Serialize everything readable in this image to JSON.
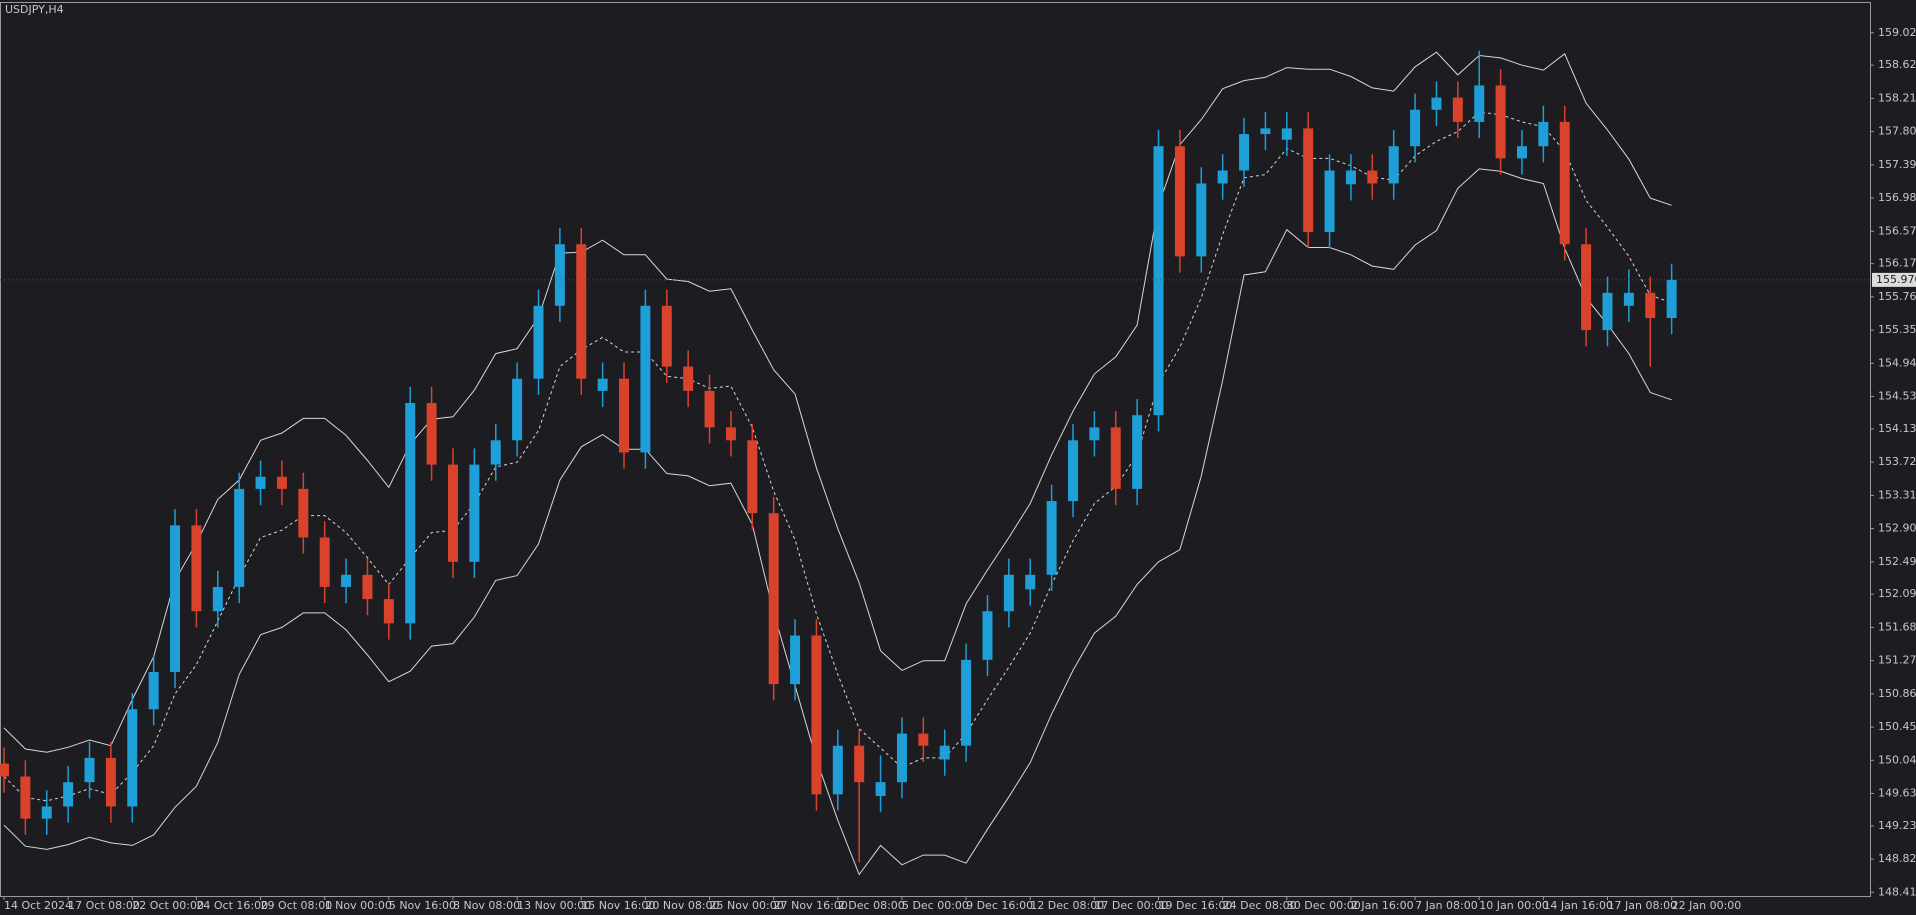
{
  "chart_data": {
    "type": "candlestick",
    "title": "USDJPY,H4",
    "background": "#1c1c21",
    "up_color": "#1e9fd8",
    "down_color": "#d9432b",
    "band_color": "#d8d8d8",
    "grid": false,
    "categories": [
      "14 Oct 2024",
      null,
      null,
      "17 Oct 08:00",
      null,
      null,
      "22 Oct 00:00",
      null,
      null,
      "24 Oct 16:00",
      null,
      null,
      "29 Oct 08:00",
      null,
      null,
      "1 Nov 00:00",
      null,
      null,
      "5 Nov 16:00",
      null,
      null,
      "8 Nov 08:00",
      null,
      null,
      "13 Nov 00:00",
      null,
      null,
      "15 Nov 16:00",
      null,
      null,
      "20 Nov 08:00",
      null,
      null,
      "25 Nov 00:00",
      null,
      null,
      "27 Nov 16:00",
      null,
      null,
      "2 Dec 08:00",
      null,
      null,
      "5 Dec 00:00",
      null,
      null,
      "9 Dec 16:00",
      null,
      null,
      "12 Dec 08:00",
      null,
      null,
      "17 Dec 00:00",
      null,
      null,
      "19 Dec 16:00",
      null,
      null,
      "24 Dec 08:00",
      null,
      null,
      "30 Dec 00:00",
      null,
      null,
      "2 Jan 16:00",
      null,
      null,
      "7 Jan 08:00",
      null,
      null,
      "10 Jan 00:00",
      null,
      null,
      "14 Jan 16:00",
      null,
      null,
      "17 Jan 08:00",
      null,
      null,
      "22 Jan 00:00"
    ],
    "open": [
      150.0,
      149.84,
      149.32,
      149.47,
      149.77,
      150.07,
      149.47,
      150.67,
      151.13,
      152.94,
      151.88,
      152.18,
      153.39,
      153.54,
      153.39,
      152.79,
      152.18,
      152.33,
      152.03,
      151.73,
      154.45,
      153.69,
      152.49,
      153.69,
      153.99,
      154.75,
      155.65,
      156.41,
      154.6,
      154.75,
      153.84,
      155.65,
      154.9,
      154.6,
      154.15,
      153.99,
      153.09,
      150.98,
      151.58,
      149.62,
      150.22,
      149.6,
      149.77,
      150.37,
      150.05,
      150.22,
      151.28,
      151.88,
      152.15,
      152.33,
      153.24,
      153.99,
      154.15,
      153.39,
      154.3,
      157.62,
      156.26,
      157.16,
      157.32,
      157.77,
      157.7,
      157.84,
      156.56,
      157.15,
      157.32,
      157.16,
      157.62,
      158.07,
      158.22,
      157.92,
      158.37,
      157.47,
      157.62,
      157.92,
      156.41,
      155.35,
      155.65,
      155.81,
      155.5
    ],
    "high": [
      150.2,
      150.04,
      149.67,
      149.97,
      150.27,
      150.27,
      150.87,
      151.33,
      153.14,
      153.14,
      152.38,
      153.59,
      153.74,
      153.74,
      153.59,
      152.99,
      152.53,
      152.53,
      152.23,
      154.65,
      154.65,
      153.89,
      153.89,
      154.19,
      154.95,
      155.85,
      156.61,
      156.61,
      154.95,
      154.95,
      155.85,
      155.85,
      155.1,
      154.8,
      154.35,
      154.19,
      153.29,
      151.78,
      151.78,
      150.42,
      150.42,
      150.1,
      150.57,
      150.57,
      150.42,
      151.48,
      152.08,
      152.53,
      152.53,
      153.44,
      154.19,
      154.35,
      154.35,
      154.5,
      157.82,
      157.82,
      157.36,
      157.52,
      157.97,
      158.04,
      158.04,
      158.04,
      157.52,
      157.52,
      157.52,
      157.82,
      158.27,
      158.42,
      158.42,
      158.8,
      158.57,
      157.82,
      158.12,
      158.12,
      156.61,
      156.01,
      156.1,
      156.01,
      156.17
    ],
    "low": [
      149.64,
      149.12,
      149.12,
      149.27,
      149.57,
      149.27,
      149.27,
      150.47,
      150.93,
      151.68,
      151.68,
      151.98,
      153.19,
      153.19,
      152.59,
      151.98,
      151.98,
      151.83,
      151.53,
      151.53,
      153.49,
      152.29,
      152.29,
      153.49,
      153.79,
      154.55,
      155.45,
      154.55,
      154.4,
      153.64,
      153.64,
      154.7,
      154.4,
      153.95,
      153.79,
      152.89,
      150.78,
      150.78,
      149.42,
      149.42,
      148.78,
      149.4,
      149.57,
      150.02,
      149.85,
      150.02,
      151.08,
      151.68,
      151.95,
      152.13,
      153.04,
      153.79,
      153.19,
      153.19,
      154.1,
      156.06,
      156.06,
      156.96,
      157.12,
      157.57,
      157.5,
      156.36,
      156.36,
      156.95,
      156.96,
      156.96,
      157.42,
      157.87,
      157.72,
      157.72,
      157.27,
      157.27,
      157.42,
      156.21,
      155.15,
      155.15,
      155.45,
      154.9,
      155.3
    ],
    "close": [
      149.84,
      149.32,
      149.47,
      149.77,
      150.07,
      149.47,
      150.67,
      151.13,
      152.94,
      151.88,
      152.18,
      153.39,
      153.54,
      153.39,
      152.79,
      152.18,
      152.33,
      152.03,
      151.73,
      154.45,
      153.69,
      152.49,
      153.69,
      153.99,
      154.75,
      155.65,
      156.41,
      154.75,
      154.75,
      153.84,
      155.65,
      154.9,
      154.6,
      154.15,
      153.99,
      153.09,
      150.98,
      151.58,
      149.62,
      150.22,
      149.77,
      149.77,
      150.37,
      150.22,
      150.22,
      151.28,
      151.88,
      152.33,
      152.33,
      153.24,
      153.99,
      154.15,
      153.39,
      154.3,
      157.62,
      156.26,
      157.16,
      157.32,
      157.77,
      157.84,
      157.84,
      156.56,
      157.32,
      157.32,
      157.16,
      157.62,
      158.07,
      158.22,
      157.92,
      158.37,
      157.47,
      157.62,
      157.92,
      156.41,
      155.35,
      155.81,
      155.81,
      155.5,
      155.97
    ],
    "bands": {
      "upper": [
        150.44,
        150.18,
        150.14,
        150.2,
        150.29,
        150.22,
        150.79,
        151.32,
        152.26,
        152.72,
        153.26,
        153.5,
        153.99,
        154.08,
        154.26,
        154.26,
        154.05,
        153.74,
        153.41,
        153.94,
        154.25,
        154.28,
        154.61,
        155.06,
        155.12,
        155.51,
        156.3,
        156.31,
        156.46,
        156.28,
        156.28,
        155.98,
        155.95,
        155.83,
        155.86,
        155.35,
        154.86,
        154.56,
        153.65,
        152.9,
        152.23,
        151.39,
        151.15,
        151.27,
        151.27,
        151.97,
        152.39,
        152.79,
        153.21,
        153.81,
        154.35,
        154.81,
        155.02,
        155.41,
        156.89,
        157.64,
        157.95,
        158.33,
        158.43,
        158.47,
        158.59,
        158.57,
        158.57,
        158.48,
        158.34,
        158.3,
        158.6,
        158.78,
        158.5,
        158.74,
        158.71,
        158.62,
        158.56,
        158.76,
        158.15,
        157.82,
        157.46,
        156.98,
        156.89
      ],
      "middle": [
        149.84,
        149.58,
        149.54,
        149.6,
        149.69,
        149.62,
        149.89,
        150.22,
        150.86,
        151.22,
        151.76,
        152.3,
        152.79,
        152.88,
        153.06,
        153.06,
        152.85,
        152.54,
        152.21,
        152.54,
        152.85,
        152.88,
        153.21,
        153.66,
        153.72,
        154.11,
        154.9,
        155.11,
        155.26,
        155.08,
        155.08,
        154.78,
        154.75,
        154.63,
        154.66,
        154.15,
        153.36,
        152.76,
        151.85,
        151.1,
        150.43,
        150.19,
        149.95,
        150.07,
        150.07,
        150.37,
        150.79,
        151.19,
        151.61,
        152.21,
        152.75,
        153.21,
        153.42,
        153.81,
        154.69,
        155.14,
        155.75,
        156.53,
        157.23,
        157.27,
        157.59,
        157.47,
        157.47,
        157.38,
        157.24,
        157.2,
        157.5,
        157.68,
        157.8,
        158.04,
        158.01,
        157.92,
        157.86,
        157.56,
        156.95,
        156.62,
        156.26,
        155.78,
        155.69
      ],
      "lower": [
        149.24,
        148.98,
        148.94,
        149.0,
        149.09,
        149.02,
        148.99,
        149.12,
        149.46,
        149.72,
        150.26,
        151.1,
        151.59,
        151.68,
        151.86,
        151.86,
        151.65,
        151.34,
        151.01,
        151.14,
        151.45,
        151.48,
        151.81,
        152.26,
        152.32,
        152.71,
        153.5,
        153.91,
        154.06,
        153.88,
        153.88,
        153.58,
        153.55,
        153.43,
        153.46,
        152.95,
        151.86,
        150.96,
        150.05,
        149.3,
        148.63,
        148.99,
        148.75,
        148.87,
        148.87,
        148.77,
        149.19,
        149.59,
        150.01,
        150.61,
        151.15,
        151.61,
        151.82,
        152.21,
        152.49,
        152.64,
        153.55,
        154.73,
        156.03,
        156.07,
        156.59,
        156.37,
        156.37,
        156.28,
        156.14,
        156.1,
        156.4,
        156.58,
        157.1,
        157.34,
        157.31,
        157.22,
        157.16,
        156.36,
        155.75,
        155.42,
        155.06,
        154.58,
        154.49
      ]
    },
    "ylim": [
      148.365,
      159.4
    ],
    "yticks": [
      {
        "value": 148.41,
        "label": "148.410"
      },
      {
        "value": 148.82,
        "label": "148.820"
      },
      {
        "value": 149.23,
        "label": "149.230"
      },
      {
        "value": 149.63,
        "label": "149.630"
      },
      {
        "value": 150.04,
        "label": "150.040"
      },
      {
        "value": 150.45,
        "label": "150.450"
      },
      {
        "value": 150.86,
        "label": "150.860"
      },
      {
        "value": 151.27,
        "label": "151.270"
      },
      {
        "value": 151.68,
        "label": "151.680"
      },
      {
        "value": 152.09,
        "label": "152.090"
      },
      {
        "value": 152.49,
        "label": "152.490"
      },
      {
        "value": 152.9,
        "label": "152.900"
      },
      {
        "value": 153.31,
        "label": "153.310"
      },
      {
        "value": 153.72,
        "label": "153.720"
      },
      {
        "value": 154.13,
        "label": "154.130"
      },
      {
        "value": 154.53,
        "label": "154.530"
      },
      {
        "value": 154.94,
        "label": "154.940"
      },
      {
        "value": 155.35,
        "label": "155.350"
      },
      {
        "value": 155.76,
        "label": "155.760"
      },
      {
        "value": 156.17,
        "label": "156.170"
      },
      {
        "value": 156.57,
        "label": "156.570"
      },
      {
        "value": 156.98,
        "label": "156.980"
      },
      {
        "value": 157.39,
        "label": "157.390"
      },
      {
        "value": 157.8,
        "label": "157.800"
      },
      {
        "value": 158.21,
        "label": "158.210"
      },
      {
        "value": 158.62,
        "label": "158.620"
      },
      {
        "value": 159.02,
        "label": "159.020"
      }
    ],
    "last_price": {
      "value": 155.97,
      "label": "155.970"
    }
  }
}
